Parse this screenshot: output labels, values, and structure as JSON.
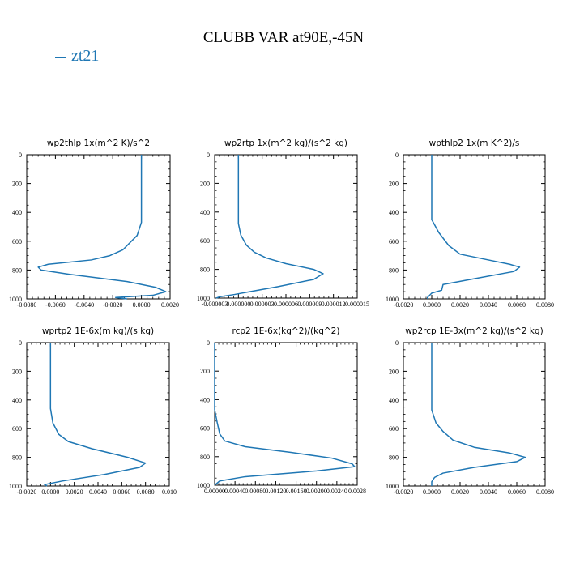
{
  "title": "CLUBB VAR at90E,-45N",
  "legend": {
    "label": "zt21",
    "color": "#1f77b4"
  },
  "chart_data": [
    {
      "type": "line",
      "title": "wp2thlp   1x(m^2 K)/s^2",
      "xlim": [
        -0.008,
        0.002
      ],
      "ylim": [
        0,
        1000
      ],
      "y_inverted": true,
      "xticks": [
        "-0.0080",
        "-0.0060",
        "-0.0040",
        "-0.0020",
        "0.0000",
        "0.0020"
      ],
      "yticks": [
        "0",
        "200",
        "400",
        "600",
        "800",
        "1000"
      ],
      "series": [
        {
          "name": "zt21",
          "points": [
            [
              0,
              0
            ],
            [
              0,
              470
            ],
            [
              -0.0003,
              560
            ],
            [
              -0.0013,
              660
            ],
            [
              -0.0022,
              700
            ],
            [
              -0.0035,
              730
            ],
            [
              -0.0065,
              760
            ],
            [
              -0.0072,
              780
            ],
            [
              -0.007,
              800
            ],
            [
              -0.005,
              830
            ],
            [
              -0.001,
              880
            ],
            [
              0.001,
              920
            ],
            [
              0.0017,
              950
            ],
            [
              0.0008,
              975
            ],
            [
              -0.0018,
              990
            ],
            [
              -0.001,
              1000
            ]
          ]
        }
      ]
    },
    {
      "type": "line",
      "title": "wp2rtp   1x(m^2 kg)/(s^2 kg)",
      "xlim": [
        -3e-06,
        1.5e-05
      ],
      "ylim": [
        0,
        1000
      ],
      "y_inverted": true,
      "xticks": [
        "-0.000003",
        "0.000000",
        "0.000003",
        "0.000006",
        "0.000009",
        "0.000012",
        "0.000015"
      ],
      "yticks": [
        "0",
        "200",
        "400",
        "600",
        "800",
        "1000"
      ],
      "series": [
        {
          "name": "zt21",
          "points": [
            [
              0,
              0
            ],
            [
              0,
              480
            ],
            [
              3e-07,
              560
            ],
            [
              1e-06,
              630
            ],
            [
              2e-06,
              680
            ],
            [
              3.5e-06,
              720
            ],
            [
              6e-06,
              760
            ],
            [
              9.5e-06,
              800
            ],
            [
              1.07e-05,
              830
            ],
            [
              9.5e-06,
              870
            ],
            [
              5e-06,
              920
            ],
            [
              1.5e-06,
              955
            ],
            [
              -5e-07,
              975
            ],
            [
              -2.3e-06,
              990
            ],
            [
              -2.8e-06,
              1000
            ]
          ]
        }
      ]
    },
    {
      "type": "line",
      "title": "wpthlp2   1x(m K^2)/s",
      "xlim": [
        -0.002,
        0.008
      ],
      "ylim": [
        0,
        1000
      ],
      "y_inverted": true,
      "xticks": [
        "-0.0020",
        "0.0000",
        "0.0020",
        "0.0040",
        "0.0060",
        "0.0080"
      ],
      "yticks": [
        "0",
        "200",
        "400",
        "600",
        "800",
        "1000"
      ],
      "series": [
        {
          "name": "zt21",
          "points": [
            [
              0,
              0
            ],
            [
              0,
              450
            ],
            [
              0.0005,
              540
            ],
            [
              0.0012,
              630
            ],
            [
              0.002,
              690
            ],
            [
              0.004,
              730
            ],
            [
              0.0055,
              760
            ],
            [
              0.0062,
              780
            ],
            [
              0.0058,
              810
            ],
            [
              0.003,
              860
            ],
            [
              0.0008,
              900
            ],
            [
              0.0007,
              940
            ],
            [
              0,
              960
            ],
            [
              -0.0003,
              990
            ],
            [
              -0.0003,
              1000
            ]
          ]
        }
      ]
    },
    {
      "type": "line",
      "title": "wprtp2   1E-6x(m kg)/(s kg)",
      "xlim": [
        -0.002,
        0.01
      ],
      "ylim": [
        0,
        1000
      ],
      "y_inverted": true,
      "xticks": [
        "-0.0020",
        "0.0000",
        "0.0020",
        "0.0040",
        "0.0060",
        "0.0080",
        "0.010"
      ],
      "yticks": [
        "0",
        "200",
        "400",
        "600",
        "800",
        "1000"
      ],
      "series": [
        {
          "name": "zt21",
          "points": [
            [
              0,
              0
            ],
            [
              0,
              460
            ],
            [
              0.0002,
              560
            ],
            [
              0.0007,
              640
            ],
            [
              0.0015,
              690
            ],
            [
              0.0035,
              740
            ],
            [
              0.0065,
              800
            ],
            [
              0.008,
              840
            ],
            [
              0.0075,
              870
            ],
            [
              0.0045,
              920
            ],
            [
              0.001,
              965
            ],
            [
              -0.0005,
              990
            ],
            [
              -0.0003,
              1000
            ]
          ]
        }
      ]
    },
    {
      "type": "line",
      "title": "rcp2   1E-6x(kg^2)/(kg^2)",
      "xlim": [
        0,
        0.0028
      ],
      "ylim": [
        0,
        1000
      ],
      "y_inverted": true,
      "xticks": [
        "0.00000",
        "0.00040",
        "0.00080",
        "0.00120",
        "0.00160",
        "0.00200",
        "0.00240",
        "0.0028"
      ],
      "yticks": [
        "0",
        "200",
        "400",
        "600",
        "800",
        "1000"
      ],
      "series": [
        {
          "name": "zt21",
          "points": [
            [
              0,
              0
            ],
            [
              0,
              470
            ],
            [
              5e-05,
              560
            ],
            [
              0.0001,
              640
            ],
            [
              0.0002,
              690
            ],
            [
              0.0006,
              730
            ],
            [
              0.0015,
              770
            ],
            [
              0.0023,
              810
            ],
            [
              0.0027,
              850
            ],
            [
              0.00275,
              870
            ],
            [
              0.002,
              900
            ],
            [
              0.0006,
              940
            ],
            [
              0.0001,
              970
            ],
            [
              0,
              1000
            ]
          ]
        }
      ]
    },
    {
      "type": "line",
      "title": "wp2rcp   1E-3x(m^2 kg)/(s^2 kg)",
      "xlim": [
        -0.002,
        0.008
      ],
      "ylim": [
        0,
        1000
      ],
      "y_inverted": true,
      "xticks": [
        "-0.0020",
        "0.0000",
        "0.0020",
        "0.0040",
        "0.0060",
        "0.0080"
      ],
      "yticks": [
        "0",
        "200",
        "400",
        "600",
        "800",
        "1000"
      ],
      "series": [
        {
          "name": "zt21",
          "points": [
            [
              0,
              0
            ],
            [
              0,
              470
            ],
            [
              0.0003,
              560
            ],
            [
              0.0008,
              620
            ],
            [
              0.0015,
              680
            ],
            [
              0.003,
              730
            ],
            [
              0.0055,
              770
            ],
            [
              0.0066,
              800
            ],
            [
              0.006,
              830
            ],
            [
              0.003,
              870
            ],
            [
              0.0008,
              910
            ],
            [
              0.0002,
              940
            ],
            [
              0,
              970
            ],
            [
              0,
              1000
            ]
          ]
        }
      ]
    }
  ]
}
